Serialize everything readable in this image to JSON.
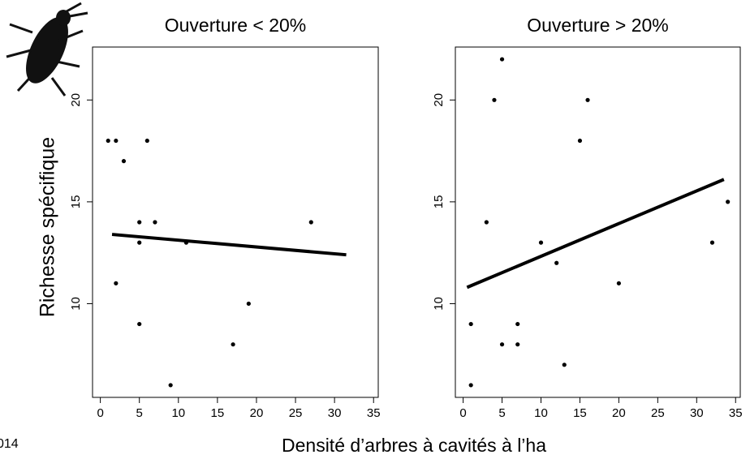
{
  "y_label": "Richesse spécifique",
  "x_label": "Densité d’arbres à cavités à l’ha",
  "footer_text": "014",
  "chart_data": [
    {
      "type": "scatter",
      "title": "Ouverture < 20%",
      "x": [
        1,
        2,
        3,
        6,
        5,
        7,
        5,
        11,
        2,
        5,
        19,
        17,
        9,
        27
      ],
      "values": [
        18,
        18,
        17,
        18,
        14,
        14,
        13,
        13,
        11,
        9,
        10,
        8,
        6,
        14
      ],
      "color": "#000000",
      "trend": {
        "x": [
          1.5,
          31.5
        ],
        "y": [
          13.4,
          12.4
        ]
      },
      "xlim": [
        -1,
        35.6
      ],
      "ylim": [
        5.4,
        22.6
      ],
      "xticks": [
        0,
        5,
        10,
        15,
        20,
        25,
        30,
        35
      ],
      "yticks": [
        10,
        15,
        20
      ]
    },
    {
      "type": "scatter",
      "title": "Ouverture > 20%",
      "x": [
        5,
        4,
        16,
        15,
        3,
        34,
        10,
        32,
        12,
        20,
        1,
        7,
        5,
        7,
        13,
        1
      ],
      "values": [
        22,
        20,
        20,
        18,
        14,
        15,
        13,
        13,
        12,
        11,
        9,
        9,
        8,
        8,
        7,
        6
      ],
      "color": "#000000",
      "trend": {
        "x": [
          0.5,
          33.5
        ],
        "y": [
          10.8,
          16.1
        ]
      },
      "xlim": [
        -1,
        35.6
      ],
      "ylim": [
        5.4,
        22.6
      ],
      "xticks": [
        0,
        5,
        10,
        15,
        20,
        25,
        30,
        35
      ],
      "yticks": [
        10,
        15,
        20
      ]
    }
  ]
}
